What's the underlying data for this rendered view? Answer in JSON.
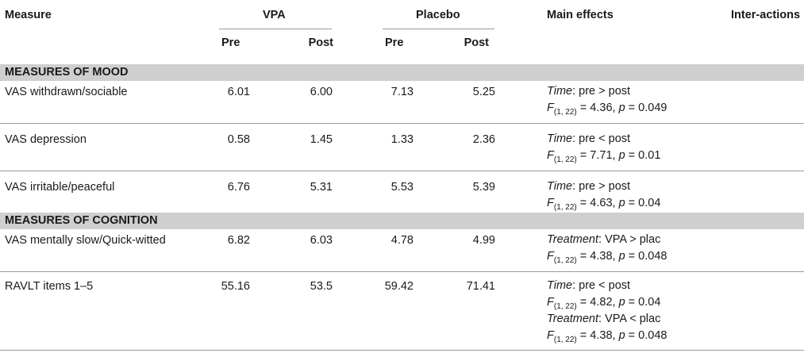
{
  "header": {
    "measure": "Measure",
    "vpa": "VPA",
    "placebo": "Placebo",
    "main_effects": "Main effects",
    "interactions": "Inter-actions",
    "pre": "Pre",
    "post": "Post"
  },
  "sections": [
    {
      "title": "MEASURES OF MOOD",
      "rows": [
        {
          "measure": "VAS withdrawn/sociable",
          "vpa_pre": "6.01",
          "vpa_post": "6.00",
          "plc_pre": "7.13",
          "plc_post": "5.25",
          "effects": [
            {
              "factor": "Time",
              "relation": ": pre > post",
              "df": "(1, 22)",
              "stat": " = 4.36, ",
              "p": " = 0.049"
            }
          ]
        },
        {
          "measure": "VAS depression",
          "vpa_pre": "0.58",
          "vpa_post": "1.45",
          "plc_pre": "1.33",
          "plc_post": "2.36",
          "effects": [
            {
              "factor": "Time",
              "relation": ": pre < post",
              "df": "(1, 22)",
              "stat": " = 7.71, ",
              "p": " = 0.01"
            }
          ]
        },
        {
          "measure": "VAS irritable/peaceful",
          "vpa_pre": "6.76",
          "vpa_post": "5.31",
          "plc_pre": "5.53",
          "plc_post": "5.39",
          "effects": [
            {
              "factor": "Time",
              "relation": ": pre > post",
              "df": "(1, 22)",
              "stat": " = 4.63, ",
              "p": " = 0.04"
            }
          ]
        }
      ]
    },
    {
      "title": "MEASURES OF COGNITION",
      "rows": [
        {
          "measure": "VAS mentally slow/Quick-witted",
          "vpa_pre": "6.82",
          "vpa_post": "6.03",
          "plc_pre": "4.78",
          "plc_post": "4.99",
          "effects": [
            {
              "factor": "Treatment",
              "relation": ": VPA > plac",
              "df": "(1, 22)",
              "stat": " = 4.38, ",
              "p": " = 0.048"
            }
          ]
        },
        {
          "measure": "RAVLT items 1–5",
          "vpa_pre": "55.16",
          "vpa_post": "53.5",
          "plc_pre": "59.42",
          "plc_post": "71.41",
          "effects": [
            {
              "factor": "Time",
              "relation": ": pre < post",
              "df": "(1, 22)",
              "stat": " = 4.82, ",
              "p": " = 0.04"
            },
            {
              "factor": "Treatment",
              "relation": ": VPA < plac",
              "df": "(1, 22)",
              "stat": " = 4.38, ",
              "p": " = 0.048"
            }
          ]
        }
      ]
    }
  ]
}
